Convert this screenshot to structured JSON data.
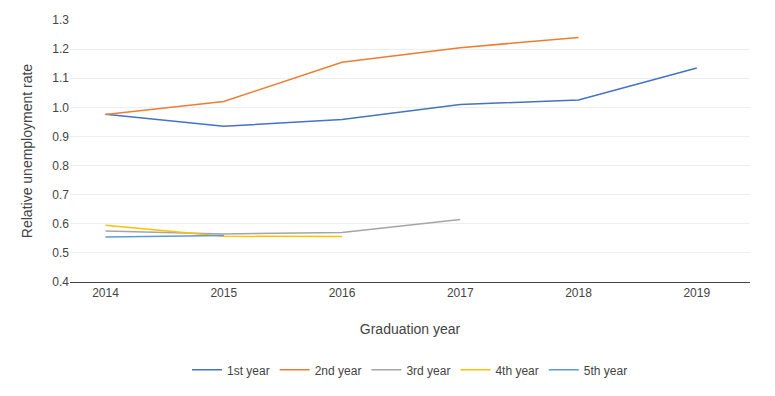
{
  "chart_data": {
    "type": "line",
    "xlabel": "Graduation year",
    "ylabel": "Relative unemployment rate",
    "series": [
      {
        "name": "1st year",
        "color": "#4472C4",
        "x": [
          2014,
          2015,
          2016,
          2017,
          2018,
          2019
        ],
        "values": [
          0.976,
          0.935,
          0.958,
          1.01,
          1.025,
          1.135
        ]
      },
      {
        "name": "2nd year",
        "color": "#ED7D31",
        "x": [
          2014,
          2015,
          2016,
          2017,
          2018
        ],
        "values": [
          0.975,
          1.02,
          1.155,
          1.205,
          1.24
        ]
      },
      {
        "name": "3rd year",
        "color": "#A5A5A5",
        "x": [
          2014,
          2015,
          2016,
          2017
        ],
        "values": [
          0.575,
          0.565,
          0.57,
          0.615
        ]
      },
      {
        "name": "4th year",
        "color": "#FFC000",
        "x": [
          2014,
          2015,
          2016
        ],
        "values": [
          0.595,
          0.557,
          0.556
        ]
      },
      {
        "name": "5th year",
        "color": "#5B9BD5",
        "x": [
          2014,
          2015
        ],
        "values": [
          0.555,
          0.56
        ]
      }
    ],
    "xlim": [
      2013.7,
      2019.45
    ],
    "xticks": [
      2014,
      2015,
      2016,
      2017,
      2018,
      2019
    ],
    "ylim": [
      0.4,
      1.3
    ],
    "yticks": [
      0.4,
      0.5,
      0.6,
      0.7,
      0.8,
      0.9,
      {
        "value": 1,
        "label": "1.0"
      },
      1.1,
      1.2,
      1.3
    ],
    "grid": "y",
    "legend": "bottom"
  }
}
